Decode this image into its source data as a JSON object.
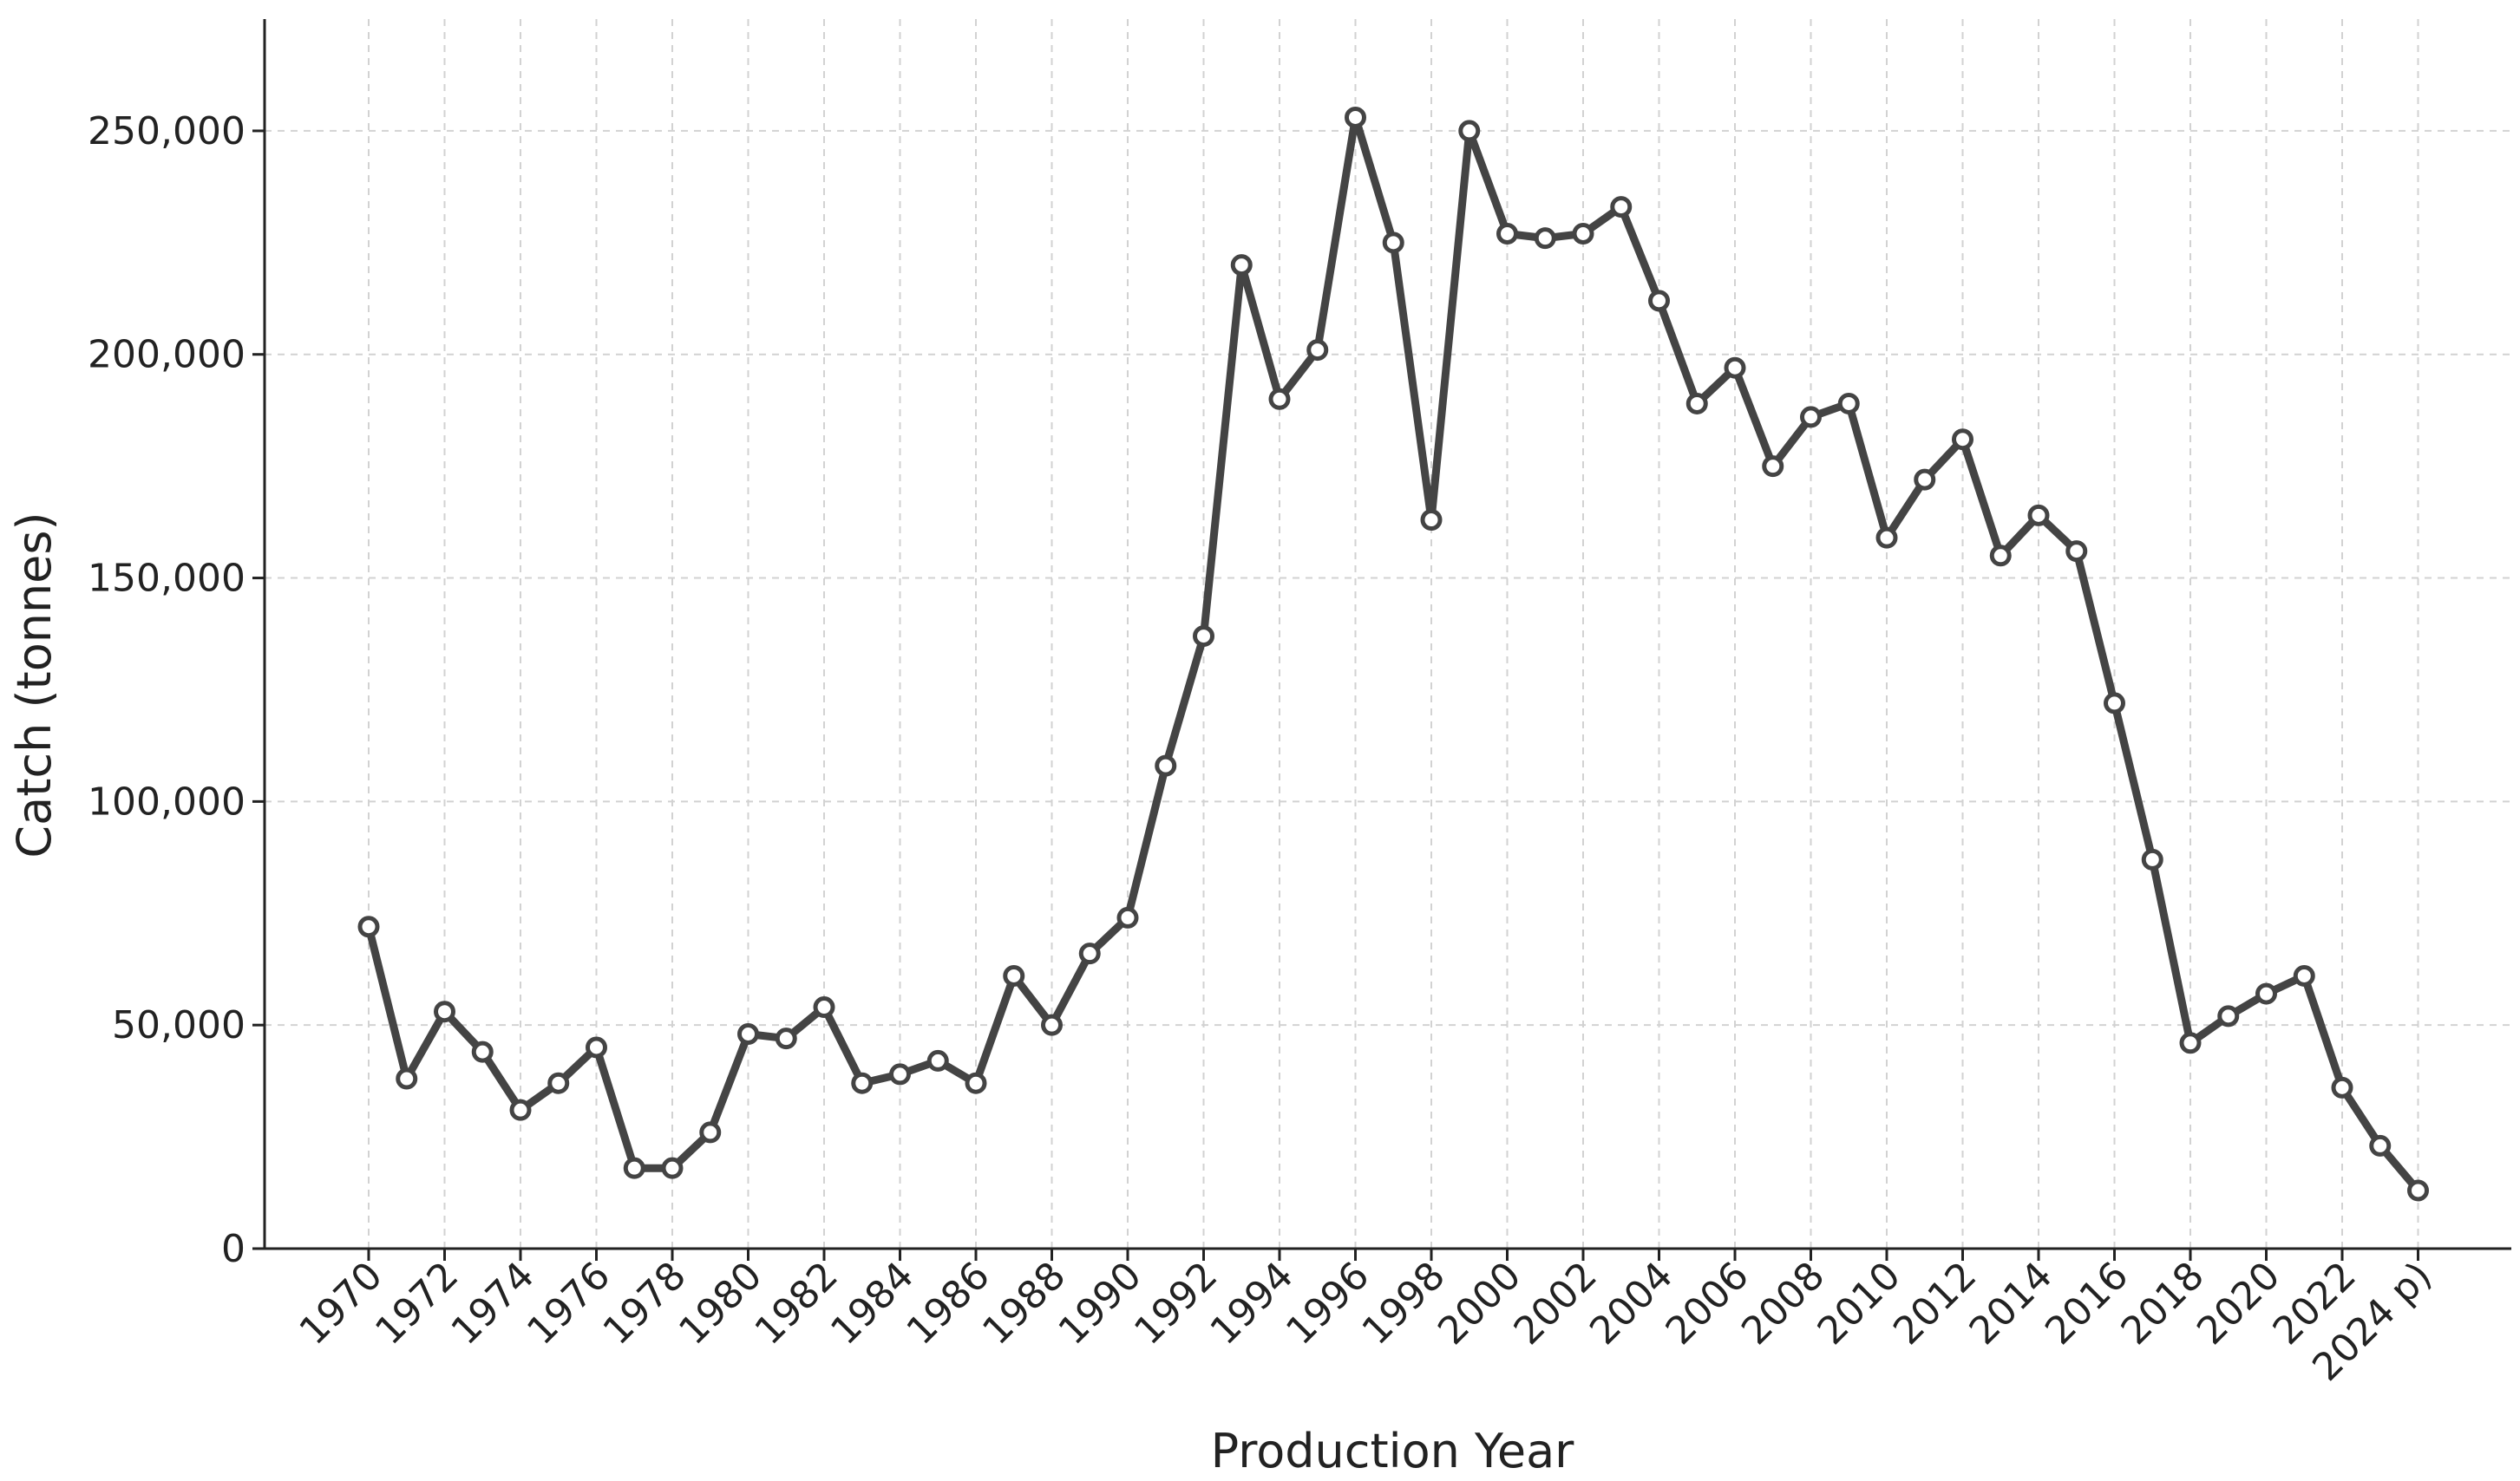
{
  "chart_data": {
    "type": "line",
    "xlabel": "Production Year",
    "ylabel": "Catch (tonnes)",
    "ylim": [
      0,
      275000
    ],
    "y_ticks": [
      0,
      50000,
      100000,
      150000,
      200000,
      250000
    ],
    "y_tick_labels": [
      "0",
      "50,000",
      "100,000",
      "150,000",
      "200,000",
      "250,000"
    ],
    "x_tick_labels": [
      "1970",
      "1972",
      "1974",
      "1976",
      "1978",
      "1980",
      "1982",
      "1984",
      "1986",
      "1988",
      "1990",
      "1992",
      "1994",
      "1996",
      "1998",
      "2000",
      "2002",
      "2004",
      "2006",
      "2008",
      "2010",
      "2012",
      "2014",
      "2016",
      "2018",
      "2020",
      "2022",
      "2024 p)"
    ],
    "grid": true,
    "legend": false,
    "x": [
      1970,
      1971,
      1972,
      1973,
      1974,
      1975,
      1976,
      1977,
      1978,
      1979,
      1980,
      1981,
      1982,
      1983,
      1984,
      1985,
      1986,
      1987,
      1988,
      1989,
      1990,
      1991,
      1992,
      1993,
      1994,
      1995,
      1996,
      1997,
      1998,
      1999,
      2000,
      2001,
      2002,
      2003,
      2004,
      2005,
      2006,
      2007,
      2008,
      2009,
      2010,
      2011,
      2012,
      2013,
      2014,
      2015,
      2016,
      2017,
      2018,
      2019,
      2020,
      2021,
      2022,
      2023,
      2024
    ],
    "values": [
      72000,
      38000,
      53000,
      44000,
      31000,
      37000,
      45000,
      18000,
      18000,
      26000,
      48000,
      47000,
      54000,
      37000,
      39000,
      42000,
      37000,
      61000,
      50000,
      66000,
      74000,
      108000,
      137000,
      220000,
      190000,
      201000,
      253000,
      225000,
      163000,
      250000,
      227000,
      226000,
      227000,
      233000,
      212000,
      189000,
      197000,
      175000,
      186000,
      189000,
      159000,
      172000,
      181000,
      155000,
      164000,
      156000,
      122000,
      87000,
      46000,
      52000,
      57000,
      61000,
      36000,
      23000,
      13000
    ],
    "line_color": "#444444",
    "marker_fill": "#ffffff"
  }
}
